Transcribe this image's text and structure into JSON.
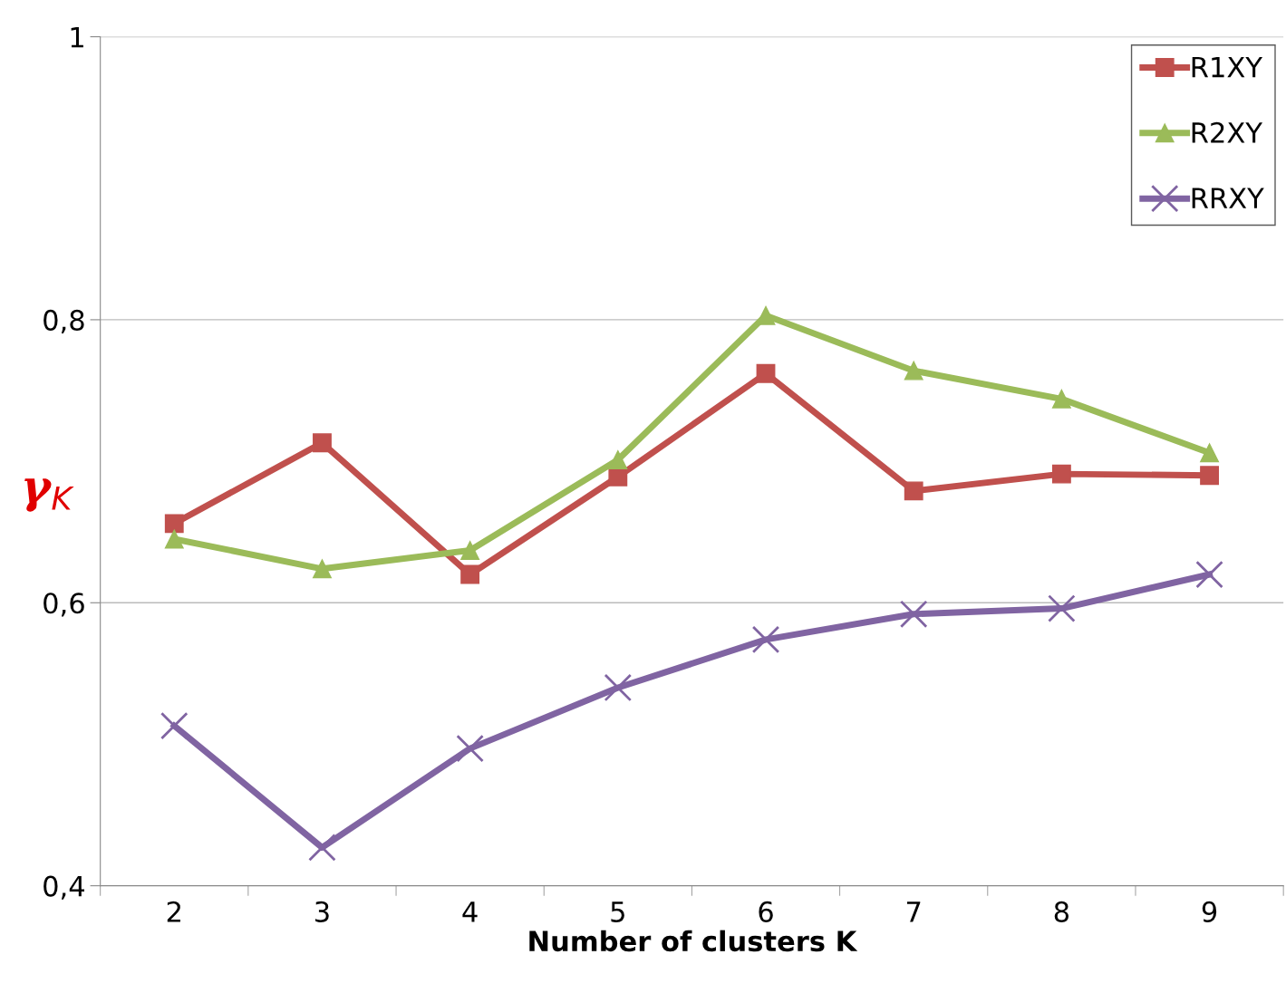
{
  "chart_data": {
    "type": "line",
    "xlabel": "Number of clusters K",
    "ylabel": "γ$_{K}$",
    "categories": [
      "2",
      "3",
      "4",
      "5",
      "6",
      "7",
      "8",
      "9"
    ],
    "series": [
      {
        "name": "R1XY",
        "color": "#c0504d",
        "marker": "square",
        "values": [
          0.656,
          0.713,
          0.62,
          0.689,
          0.762,
          0.679,
          0.691,
          0.69
        ]
      },
      {
        "name": "R2XY",
        "color": "#9bbb59",
        "marker": "triangle",
        "values": [
          0.645,
          0.624,
          0.637,
          0.701,
          0.803,
          0.764,
          0.744,
          0.706
        ]
      },
      {
        "name": "RRXY",
        "color": "#8064a2",
        "marker": "cross",
        "values": [
          0.513,
          0.427,
          0.497,
          0.54,
          0.574,
          0.592,
          0.596,
          0.62
        ]
      }
    ],
    "ylim": [
      0.4,
      1
    ],
    "yticks": [
      {
        "value": 0.4,
        "label": "0,4"
      },
      {
        "value": 0.6,
        "label": "0,6"
      },
      {
        "value": 0.8,
        "label": "0,8"
      },
      {
        "value": 1,
        "label": "1"
      }
    ],
    "grid": "y",
    "legend": "top right",
    "line_style": "solid"
  }
}
